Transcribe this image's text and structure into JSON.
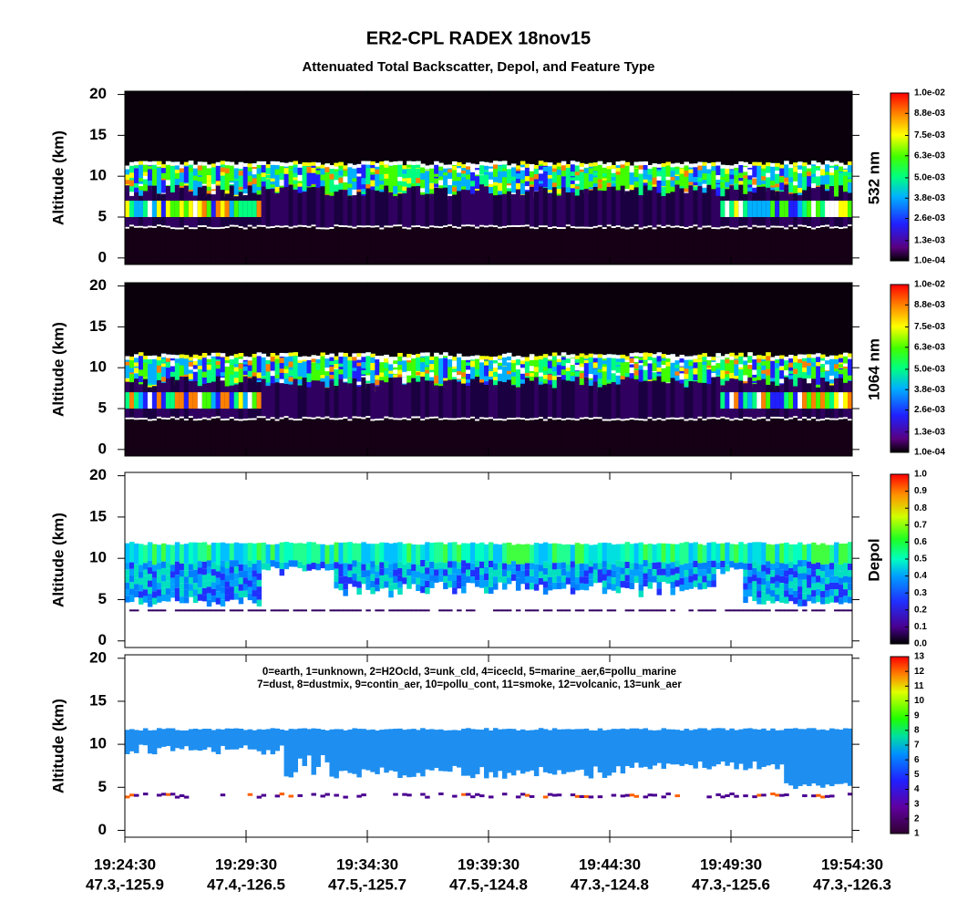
{
  "title": "ER2-CPL RADEX 18nov15",
  "subtitle": "Attenuated Total Backscatter, Depol, and Feature Type",
  "chart_data": [
    {
      "type": "heatmap",
      "ylabel": "Altitude (km)",
      "ylim": [
        -0.8,
        20.4
      ],
      "yticks": [
        0,
        5,
        10,
        15,
        20
      ],
      "colorbar_label": "532 nm",
      "colormap": "backscatter",
      "clim": [
        0.0001,
        0.01
      ],
      "cticks": [
        {
          "value": 0.0001,
          "label": "1.0e-04"
        },
        {
          "value": 0.0013,
          "label": "1.3e-03"
        },
        {
          "value": 0.0026,
          "label": "2.6e-03"
        },
        {
          "value": 0.0038,
          "label": "3.8e-03"
        },
        {
          "value": 0.005,
          "label": "5.0e-03"
        },
        {
          "value": 0.0063,
          "label": "6.3e-03"
        },
        {
          "value": 0.0075,
          "label": "7.5e-03"
        },
        {
          "value": 0.0088,
          "label": "8.8e-03"
        },
        {
          "value": 0.01,
          "label": "1.0e-02"
        }
      ]
    },
    {
      "type": "heatmap",
      "ylabel": "Altitude (km)",
      "ylim": [
        -0.8,
        20.4
      ],
      "yticks": [
        0,
        5,
        10,
        15,
        20
      ],
      "colorbar_label": "1064 nm",
      "colormap": "backscatter",
      "clim": [
        0.0001,
        0.01
      ],
      "cticks": [
        {
          "value": 0.0001,
          "label": "1.0e-04"
        },
        {
          "value": 0.0013,
          "label": "1.3e-03"
        },
        {
          "value": 0.0026,
          "label": "2.6e-03"
        },
        {
          "value": 0.0038,
          "label": "3.8e-03"
        },
        {
          "value": 0.005,
          "label": "5.0e-03"
        },
        {
          "value": 0.0063,
          "label": "6.3e-03"
        },
        {
          "value": 0.0075,
          "label": "7.5e-03"
        },
        {
          "value": 0.0088,
          "label": "8.8e-03"
        },
        {
          "value": 0.01,
          "label": "1.0e-02"
        }
      ]
    },
    {
      "type": "heatmap",
      "ylabel": "Altitude (km)",
      "ylim": [
        -0.8,
        20.4
      ],
      "yticks": [
        0,
        5,
        10,
        15,
        20
      ],
      "colorbar_label": "Depol",
      "colormap": "depol",
      "clim": [
        0,
        1
      ],
      "cticks": [
        {
          "value": 0,
          "label": "0.0"
        },
        0.1,
        0.2,
        0.3,
        0.4,
        0.5,
        0.6,
        0.7,
        0.8,
        0.9,
        {
          "value": 1,
          "label": "1.0"
        }
      ]
    },
    {
      "type": "heatmap",
      "ylabel": "Altitude (km)",
      "ylim": [
        -0.8,
        20.4
      ],
      "yticks": [
        0,
        5,
        10,
        15,
        20
      ],
      "colormap": "feature",
      "clim": [
        1,
        13
      ],
      "cticks": [
        1,
        2,
        3,
        4,
        5,
        6,
        7,
        8,
        9,
        10,
        11,
        12,
        13
      ],
      "annotations": [
        "0=earth, 1=unknown, 2=H2Ocld, 3=unk_cld, 4=icecld, 5=marine_aer,6=pollu_marine",
        "7=dust, 8=dustmix, 9=contin_aer, 10=pollu_cont, 11=smoke, 12=volcanic, 13=unk_aer"
      ],
      "xticks": [
        {
          "time": "19:24:30",
          "location": "47.3,-125.9"
        },
        {
          "time": "19:29:30",
          "location": "47.4,-126.5"
        },
        {
          "time": "19:34:30",
          "location": "47.5,-125.7"
        },
        {
          "time": "19:39:30",
          "location": "47.5,-124.8"
        },
        {
          "time": "19:44:30",
          "location": "47.3,-124.8"
        },
        {
          "time": "19:49:30",
          "location": "47.3,-125.6"
        },
        {
          "time": "19:54:30",
          "location": "47.3,-126.3"
        }
      ]
    }
  ]
}
